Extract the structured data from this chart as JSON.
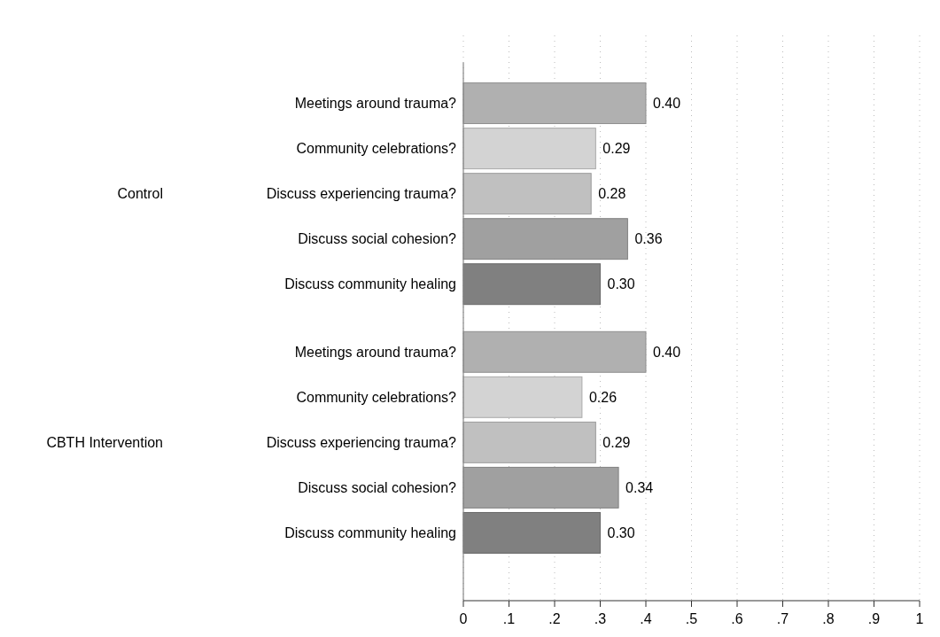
{
  "chart_data": {
    "type": "bar",
    "orientation": "horizontal",
    "categories": [
      "Meetings around trauma?",
      "Community celebrations?",
      "Discuss experiencing trauma?",
      "Discuss social cohesion?",
      "Discuss community healing",
      null,
      "Meetings around trauma?",
      "Community celebrations?",
      "Discuss experiencing trauma?",
      "Discuss social cohesion?",
      "Discuss community healing"
    ],
    "values": [
      0.4,
      0.29,
      0.28,
      0.36,
      0.3,
      null,
      0.4,
      0.26,
      0.29,
      0.34,
      0.3
    ],
    "value_labels": [
      "0.40",
      "0.29",
      "0.28",
      "0.36",
      "0.30",
      null,
      "0.40",
      "0.26",
      "0.29",
      "0.34",
      "0.30"
    ],
    "colors": [
      "#b0b0b0",
      "#d3d3d3",
      "#c0c0c0",
      "#a0a0a0",
      "#808080",
      null,
      "#b0b0b0",
      "#d3d3d3",
      "#c0c0c0",
      "#a0a0a0",
      "#808080"
    ],
    "annotations": [
      "Control",
      "CBTH Intervention"
    ],
    "xlim": [
      0,
      1
    ],
    "xticks": [
      0,
      {
        "value": 0.1,
        "label": ".1"
      },
      {
        "value": 0.2,
        "label": ".2"
      },
      {
        "value": 0.3,
        "label": ".3"
      },
      {
        "value": 0.4,
        "label": ".4"
      },
      {
        "value": 0.5,
        "label": ".5"
      },
      {
        "value": 0.6,
        "label": ".6"
      },
      {
        "value": 0.7,
        "label": ".7"
      },
      {
        "value": 0.8,
        "label": ".8"
      },
      {
        "value": 0.9,
        "label": ".9"
      },
      1
    ],
    "grid": "x"
  }
}
